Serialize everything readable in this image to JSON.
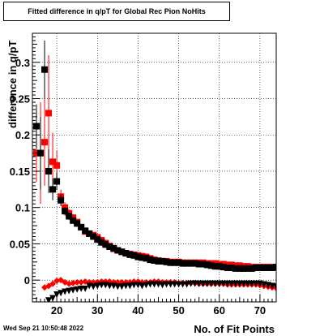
{
  "chart_data": {
    "type": "scatter",
    "title": "Fitted difference in q/pT for Global Rec Pion NoHits",
    "xlabel": "No. of Fit Points",
    "ylabel": "difference in q/pT",
    "xlim": [
      14,
      74
    ],
    "ylim": [
      -0.03,
      0.34
    ],
    "x_ticks": [
      "20",
      "30",
      "40",
      "50",
      "60",
      "70"
    ],
    "y_ticks": [
      "0",
      "0.05",
      "0.1",
      "0.15",
      "0.2",
      "0.25",
      "0.3"
    ],
    "grid": true,
    "timestamp": "Wed Sep 21 10:50:48 2022",
    "colors": {
      "upper_black": "#000000",
      "upper_red": "#ff0000",
      "lower_black": "#000000",
      "lower_red": "#ff0000"
    },
    "series": [
      {
        "key": "upper_black",
        "marker": "square",
        "x": [
          15,
          16,
          17,
          18,
          19,
          20,
          21,
          22,
          23,
          24,
          25,
          26,
          27,
          28,
          29,
          30,
          31,
          32,
          33,
          34,
          35,
          36,
          37,
          38,
          39,
          40,
          41,
          42,
          43,
          44,
          45,
          46,
          47,
          48,
          49,
          50,
          51,
          52,
          53,
          54,
          55,
          56,
          57,
          58,
          59,
          60,
          61,
          62,
          63,
          64,
          65,
          66,
          67,
          68,
          69,
          70,
          71,
          72,
          73,
          74
        ],
        "y": [
          0.212,
          0.175,
          0.29,
          0.15,
          0.125,
          0.136,
          0.11,
          0.095,
          0.088,
          0.082,
          0.078,
          0.073,
          0.068,
          0.064,
          0.06,
          0.056,
          0.052,
          0.049,
          0.046,
          0.044,
          0.041,
          0.039,
          0.037,
          0.035,
          0.034,
          0.032,
          0.031,
          0.03,
          0.028,
          0.027,
          0.026,
          0.026,
          0.025,
          0.024,
          0.024,
          0.024,
          0.023,
          0.023,
          0.023,
          0.023,
          0.022,
          0.022,
          0.021,
          0.02,
          0.019,
          0.019,
          0.018,
          0.017,
          0.017,
          0.016,
          0.016,
          0.016,
          0.016,
          0.016,
          0.017,
          0.017,
          0.017,
          0.017,
          0.017,
          0.018
        ],
        "yerr": [
          0.03,
          0.05,
          0.04,
          0.03,
          0.015,
          0.012,
          0.008,
          0.006,
          0.005,
          0.004,
          0.004,
          0.003,
          0.003,
          0.003,
          0.002,
          0.002,
          0.002,
          0.002,
          0.002,
          0.002,
          0.002,
          0.001,
          0.001,
          0.001,
          0.001,
          0.001,
          0.001,
          0.001,
          0.001,
          0.001,
          0.001,
          0.001,
          0.001,
          0.001,
          0.001,
          0.001,
          0.001,
          0.001,
          0.001,
          0.001,
          0.001,
          0.001,
          0.001,
          0.001,
          0.001,
          0.001,
          0.001,
          0.001,
          0.001,
          0.001,
          0.001,
          0.001,
          0.001,
          0.001,
          0.001,
          0.001,
          0.001,
          0.001,
          0.001,
          0.001
        ]
      },
      {
        "key": "upper_red",
        "marker": "square",
        "x": [
          15,
          16,
          17,
          18,
          19,
          20,
          21,
          22,
          23,
          24,
          25,
          26,
          27,
          28,
          29,
          30,
          31,
          32,
          33,
          34,
          35,
          36,
          37,
          38,
          39,
          40,
          41,
          42,
          43,
          44,
          45,
          46,
          47,
          48,
          49,
          50,
          51,
          52,
          53,
          54,
          55,
          56,
          57,
          58,
          59,
          60,
          61,
          62,
          63,
          64,
          65,
          66,
          67,
          68,
          69,
          70,
          71,
          72,
          73,
          74
        ],
        "y": [
          0.175,
          0.175,
          0.19,
          0.23,
          0.163,
          0.158,
          0.115,
          0.1,
          0.092,
          0.086,
          0.08,
          0.073,
          0.067,
          0.064,
          0.062,
          0.059,
          0.055,
          0.051,
          0.047,
          0.043,
          0.041,
          0.039,
          0.037,
          0.036,
          0.035,
          0.034,
          0.033,
          0.032,
          0.03,
          0.028,
          0.027,
          0.026,
          0.026,
          0.025,
          0.025,
          0.025,
          0.024,
          0.024,
          0.024,
          0.024,
          0.024,
          0.024,
          0.023,
          0.023,
          0.023,
          0.022,
          0.022,
          0.021,
          0.021,
          0.02,
          0.02,
          0.019,
          0.019,
          0.018,
          0.018,
          0.018,
          0.018,
          0.018,
          0.018,
          0.018
        ],
        "yerr": [
          0.04,
          0.07,
          0.06,
          0.08,
          0.04,
          0.02,
          0.01,
          0.007,
          0.006,
          0.005,
          0.004,
          0.003,
          0.003,
          0.003,
          0.002,
          0.002,
          0.002,
          0.002,
          0.002,
          0.002,
          0.002,
          0.001,
          0.001,
          0.001,
          0.001,
          0.001,
          0.001,
          0.001,
          0.001,
          0.001,
          0.001,
          0.001,
          0.001,
          0.001,
          0.001,
          0.001,
          0.001,
          0.001,
          0.001,
          0.001,
          0.001,
          0.001,
          0.001,
          0.001,
          0.001,
          0.001,
          0.001,
          0.001,
          0.001,
          0.001,
          0.001,
          0.001,
          0.001,
          0.001,
          0.001,
          0.001,
          0.001,
          0.001,
          0.001,
          0.001
        ]
      },
      {
        "key": "lower_black",
        "marker": "triangle-down",
        "x": [
          18,
          19,
          20,
          21,
          22,
          23,
          24,
          25,
          26,
          27,
          28,
          29,
          30,
          31,
          32,
          33,
          34,
          35,
          36,
          37,
          38,
          39,
          40,
          41,
          42,
          43,
          44,
          45,
          46,
          47,
          48,
          49,
          50,
          51,
          52,
          53,
          54,
          55,
          56,
          57,
          58,
          59,
          60,
          61,
          62,
          63,
          64,
          65,
          66,
          67,
          68,
          69,
          70,
          71,
          72,
          73,
          74
        ],
        "y": [
          -0.028,
          -0.025,
          -0.02,
          -0.018,
          -0.016,
          -0.015,
          -0.014,
          -0.013,
          -0.012,
          -0.012,
          -0.008,
          -0.009,
          -0.008,
          -0.007,
          -0.007,
          -0.008,
          -0.008,
          -0.009,
          -0.009,
          -0.008,
          -0.008,
          -0.007,
          -0.007,
          -0.008,
          -0.007,
          -0.006,
          -0.006,
          -0.006,
          -0.007,
          -0.006,
          -0.006,
          -0.006,
          -0.006,
          -0.006,
          -0.006,
          -0.005,
          -0.005,
          -0.005,
          -0.005,
          -0.005,
          -0.005,
          -0.005,
          -0.005,
          -0.005,
          -0.005,
          -0.005,
          -0.005,
          -0.005,
          -0.005,
          -0.005,
          -0.005,
          -0.005,
          -0.005,
          -0.006,
          -0.007,
          -0.008,
          -0.009
        ],
        "yerr": [
          0.004,
          0.003,
          0.003,
          0.002,
          0.002,
          0.002,
          0.002,
          0.001,
          0.001,
          0.001,
          0.001,
          0.001,
          0.001,
          0.001,
          0.001,
          0.001,
          0.001,
          0.001,
          0.001,
          0.001,
          0.001,
          0.001,
          0.001,
          0.001,
          0.001,
          0.001,
          0.001,
          0.001,
          0.001,
          0.001,
          0.001,
          0.001,
          0.001,
          0.001,
          0.001,
          0.001,
          0.001,
          0.001,
          0.001,
          0.001,
          0.001,
          0.001,
          0.001,
          0.001,
          0.001,
          0.001,
          0.001,
          0.001,
          0.001,
          0.001,
          0.001,
          0.001,
          0.001,
          0.001,
          0.001,
          0.001,
          0.001
        ]
      },
      {
        "key": "lower_red",
        "marker": "diamond",
        "x": [
          17,
          18,
          19,
          20,
          21,
          22,
          23,
          24,
          25,
          26,
          27,
          28,
          29,
          30,
          31,
          32,
          33,
          34,
          35,
          36,
          37,
          38,
          39,
          40,
          41,
          42,
          43,
          44,
          45,
          46,
          47,
          48,
          49,
          50,
          51,
          52,
          53,
          54,
          55,
          56,
          57,
          58,
          59,
          60,
          61,
          62,
          63,
          64,
          65,
          66,
          67,
          68,
          69,
          70,
          71,
          72,
          73,
          74
        ],
        "y": [
          -0.01,
          -0.008,
          -0.005,
          -0.001,
          0.0,
          -0.003,
          -0.005,
          -0.004,
          -0.003,
          -0.003,
          -0.002,
          -0.003,
          -0.003,
          -0.003,
          -0.002,
          -0.002,
          -0.002,
          -0.003,
          -0.003,
          -0.003,
          -0.003,
          -0.003,
          -0.002,
          -0.002,
          -0.003,
          -0.003,
          -0.003,
          -0.002,
          -0.002,
          -0.003,
          -0.003,
          -0.003,
          -0.003,
          -0.004,
          -0.004,
          -0.004,
          -0.004,
          -0.004,
          -0.005,
          -0.005,
          -0.005,
          -0.005,
          -0.005,
          -0.005,
          -0.005,
          -0.006,
          -0.006,
          -0.006,
          -0.006,
          -0.006,
          -0.006,
          -0.006,
          -0.006,
          -0.007,
          -0.008,
          -0.009,
          -0.01,
          -0.011
        ],
        "yerr": [
          0.004,
          0.003,
          0.003,
          0.002,
          0.002,
          0.002,
          0.001,
          0.001,
          0.001,
          0.001,
          0.001,
          0.001,
          0.001,
          0.001,
          0.001,
          0.001,
          0.001,
          0.001,
          0.001,
          0.001,
          0.001,
          0.001,
          0.001,
          0.001,
          0.001,
          0.001,
          0.001,
          0.001,
          0.001,
          0.001,
          0.001,
          0.001,
          0.001,
          0.001,
          0.001,
          0.001,
          0.001,
          0.001,
          0.001,
          0.001,
          0.001,
          0.001,
          0.001,
          0.001,
          0.001,
          0.001,
          0.001,
          0.001,
          0.001,
          0.001,
          0.001,
          0.001,
          0.001,
          0.001,
          0.001,
          0.001,
          0.001,
          0.001
        ]
      }
    ]
  }
}
